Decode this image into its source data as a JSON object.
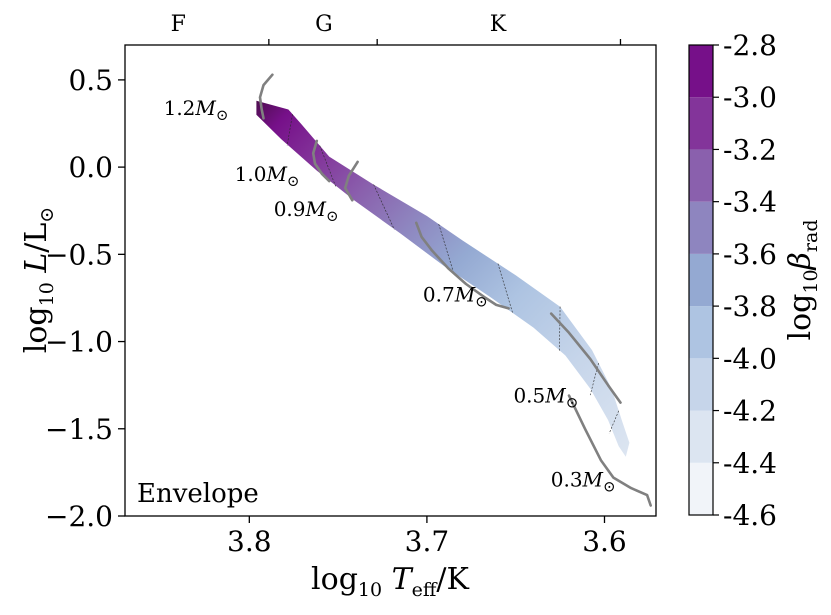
{
  "chart_data": {
    "type": "hr-diagram",
    "panel_label": "Envelope",
    "xlabel": "log10 Teff/K",
    "ylabel": "log10 L/L⊙",
    "colorbar_label": "log10 βrad",
    "x_range": [
      3.87,
      3.571
    ],
    "y_range": [
      -2.0,
      0.7
    ],
    "x_ticks": [
      {
        "value": 3.8,
        "label": "3.8"
      },
      {
        "value": 3.7,
        "label": "3.7"
      },
      {
        "value": 3.6,
        "label": "3.6"
      }
    ],
    "y_ticks": [
      {
        "value": 0.5,
        "label": "0.5"
      },
      {
        "value": 0.0,
        "label": "0.0"
      },
      {
        "value": -0.5,
        "label": "−0.5"
      },
      {
        "value": -1.0,
        "label": "−1.0"
      },
      {
        "value": -1.5,
        "label": "−1.5"
      },
      {
        "value": -2.0,
        "label": "−2.0"
      }
    ],
    "spectral_ticks": [
      3.789,
      3.728,
      3.591
    ],
    "spectral_labels": [
      {
        "label": "F",
        "x": 3.84
      },
      {
        "label": "G",
        "x": 3.758
      },
      {
        "label": "K",
        "x": 3.66
      }
    ],
    "colorbar": {
      "levels": [
        -4.6,
        -4.4,
        -4.2,
        -4.0,
        -3.8,
        -3.6,
        -3.4,
        -3.2,
        -3.0,
        -2.8
      ],
      "tick_labels": [
        "-4.6",
        "-4.4",
        "-4.2",
        "-4.0",
        "-3.8",
        "-3.6",
        "-3.4",
        "-3.2",
        "-3.0",
        "-2.8"
      ],
      "colors": [
        "#f1f4f9",
        "#dce5f1",
        "#c6d5ea",
        "#aec4e2",
        "#94a9d2",
        "#8e85bf",
        "#8a60ad",
        "#83349a",
        "#761089",
        "#4e0e4f"
      ]
    },
    "mass_labels": [
      {
        "label": "1.2",
        "x": 3.83,
        "y": 0.3
      },
      {
        "label": "1.0",
        "x": 3.79,
        "y": -0.08
      },
      {
        "label": "0.9",
        "x": 3.768,
        "y": -0.28
      },
      {
        "label": "0.7",
        "x": 3.684,
        "y": -0.77
      },
      {
        "label": "0.5",
        "x": 3.633,
        "y": -1.35
      },
      {
        "label": "0.3",
        "x": 3.612,
        "y": -1.83
      }
    ],
    "mass_suffix": "M⊙",
    "tracks": [
      {
        "mass": "1.2",
        "points": [
          [
            3.787,
            0.53
          ],
          [
            3.792,
            0.47
          ],
          [
            3.794,
            0.4
          ],
          [
            3.793,
            0.33
          ],
          [
            3.792,
            0.28
          ]
        ]
      },
      {
        "mass": "1.0",
        "points": [
          [
            3.762,
            0.15
          ],
          [
            3.764,
            0.08
          ],
          [
            3.763,
            0.02
          ],
          [
            3.759,
            -0.04
          ],
          [
            3.755,
            -0.08
          ]
        ]
      },
      {
        "mass": "0.9",
        "points": [
          [
            3.739,
            0.03
          ],
          [
            3.744,
            -0.05
          ],
          [
            3.746,
            -0.12
          ],
          [
            3.742,
            -0.19
          ]
        ]
      },
      {
        "mass": "0.7",
        "points": [
          [
            3.706,
            -0.32
          ],
          [
            3.703,
            -0.4
          ],
          [
            3.697,
            -0.48
          ],
          [
            3.688,
            -0.58
          ],
          [
            3.678,
            -0.67
          ],
          [
            3.667,
            -0.75
          ],
          [
            3.661,
            -0.79
          ],
          [
            3.654,
            -0.81
          ]
        ]
      },
      {
        "mass": "0.5",
        "points": [
          [
            3.63,
            -0.84
          ],
          [
            3.62,
            -0.95
          ],
          [
            3.608,
            -1.1
          ],
          [
            3.598,
            -1.25
          ],
          [
            3.591,
            -1.35
          ]
        ]
      },
      {
        "mass": "0.3",
        "points": [
          [
            3.62,
            -1.31
          ],
          [
            3.611,
            -1.5
          ],
          [
            3.602,
            -1.68
          ],
          [
            3.595,
            -1.78
          ],
          [
            3.585,
            -1.84
          ],
          [
            3.576,
            -1.88
          ],
          [
            3.574,
            -1.94
          ]
        ]
      }
    ],
    "band": {
      "upper": [
        [
          3.796,
          0.38
        ],
        [
          3.778,
          0.33
        ],
        [
          3.771,
          0.25
        ],
        [
          3.755,
          0.06
        ],
        [
          3.73,
          -0.1
        ],
        [
          3.7,
          -0.28
        ],
        [
          3.68,
          -0.42
        ],
        [
          3.65,
          -0.62
        ],
        [
          3.625,
          -0.8
        ],
        [
          3.607,
          -1.05
        ],
        [
          3.596,
          -1.27
        ],
        [
          3.59,
          -1.46
        ],
        [
          3.586,
          -1.58
        ]
      ],
      "lower": [
        [
          3.796,
          0.3
        ],
        [
          3.782,
          0.16
        ],
        [
          3.762,
          -0.02
        ],
        [
          3.741,
          -0.19
        ],
        [
          3.715,
          -0.38
        ],
        [
          3.69,
          -0.57
        ],
        [
          3.665,
          -0.74
        ],
        [
          3.64,
          -0.92
        ],
        [
          3.622,
          -1.08
        ],
        [
          3.608,
          -1.27
        ],
        [
          3.598,
          -1.45
        ],
        [
          3.592,
          -1.6
        ],
        [
          3.588,
          -1.66
        ]
      ],
      "contours": [
        -3.0,
        -3.2,
        -3.4,
        -3.6,
        -3.8,
        -4.0,
        -4.2,
        -4.4
      ]
    }
  }
}
